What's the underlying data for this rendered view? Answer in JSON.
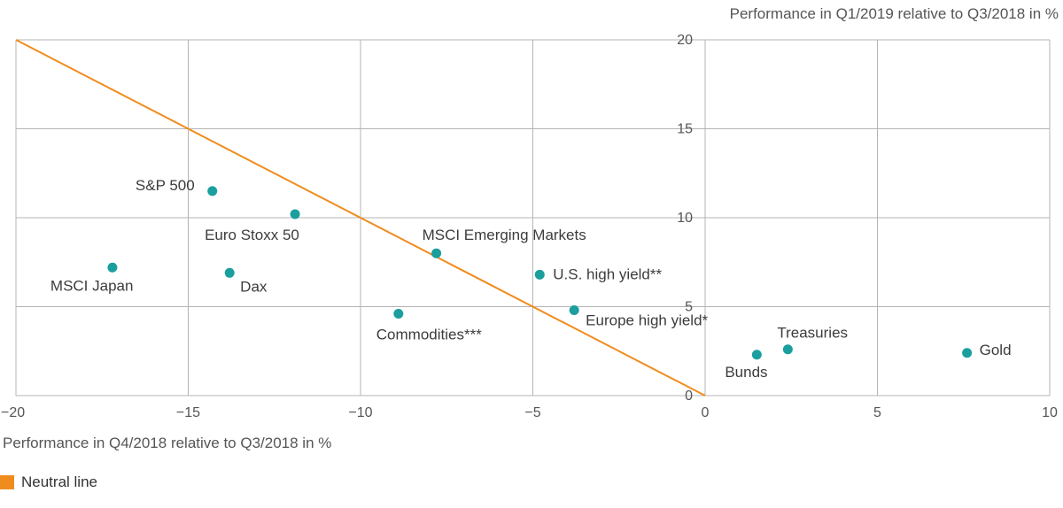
{
  "chart_data": {
    "type": "scatter",
    "xlabel": "Performance in Q4/2018 relative to Q3/2018 in %",
    "ylabel": "Performance in Q1/2019 relative to Q3/2018 in %",
    "xlim": [
      -20,
      10
    ],
    "ylim": [
      0,
      20
    ],
    "x_ticks": [
      "−20",
      "−15",
      "−10",
      "−5",
      "0",
      "5",
      "10"
    ],
    "y_ticks": [
      "0",
      "5",
      "10",
      "15",
      "20"
    ],
    "grid": true,
    "points": [
      {
        "label": "S&P 500",
        "x": -14.3,
        "y": 11.5
      },
      {
        "label": "Euro Stoxx 50",
        "x": -11.9,
        "y": 10.2
      },
      {
        "label": "MSCI Japan",
        "x": -17.2,
        "y": 7.2
      },
      {
        "label": "Dax",
        "x": -13.8,
        "y": 6.9
      },
      {
        "label": "MSCI Emerging Markets",
        "x": -7.8,
        "y": 8.0
      },
      {
        "label": "U.S. high yield**",
        "x": -4.8,
        "y": 6.8
      },
      {
        "label": "Commodities***",
        "x": -8.9,
        "y": 4.6
      },
      {
        "label": "Europe high yield*",
        "x": -3.8,
        "y": 4.8
      },
      {
        "label": "Bunds",
        "x": 1.5,
        "y": 2.3
      },
      {
        "label": "Treasuries",
        "x": 2.4,
        "y": 2.6
      },
      {
        "label": "Gold",
        "x": 7.6,
        "y": 2.4
      }
    ],
    "neutral_line": {
      "from": [
        -20,
        20
      ],
      "to": [
        0,
        0
      ]
    },
    "legend": {
      "label": "Neutral line",
      "placement": "bottom-left"
    },
    "colors": {
      "points": "#1a9e9e",
      "neutral_line": "#f08c1e",
      "grid": "#b4b4b4"
    }
  }
}
